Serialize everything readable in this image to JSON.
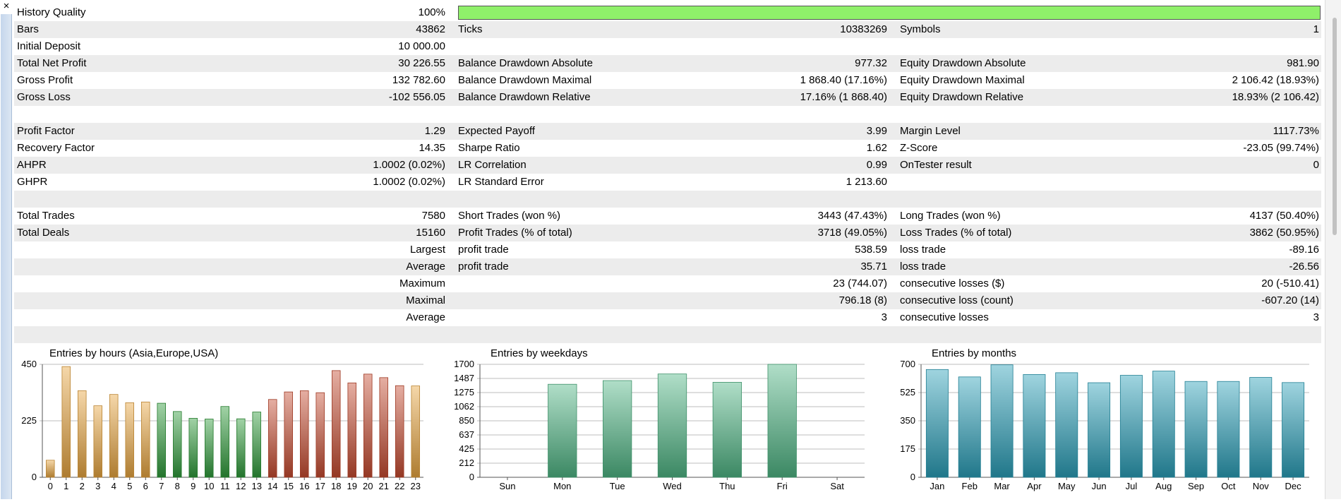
{
  "window": {
    "close_glyph": "×"
  },
  "report": {
    "history_quality": {
      "label": "History Quality",
      "value": "100%",
      "fill_fraction": 1.0
    },
    "rows": [
      {
        "shade": true,
        "c1l": "Bars",
        "c1v": "43862",
        "c2l": "Ticks",
        "c2v": "10383269",
        "c3l": "Symbols",
        "c3v": "1"
      },
      {
        "shade": false,
        "c1l": "Initial Deposit",
        "c1v": "10 000.00",
        "c2l": "",
        "c2v": "",
        "c3l": "",
        "c3v": ""
      },
      {
        "shade": true,
        "c1l": "Total Net Profit",
        "c1v": "30 226.55",
        "c2l": "Balance Drawdown Absolute",
        "c2v": "977.32",
        "c3l": "Equity Drawdown Absolute",
        "c3v": "981.90"
      },
      {
        "shade": false,
        "c1l": "Gross Profit",
        "c1v": "132 782.60",
        "c2l": "Balance Drawdown Maximal",
        "c2v": "1 868.40 (17.16%)",
        "c3l": "Equity Drawdown Maximal",
        "c3v": "2 106.42 (18.93%)"
      },
      {
        "shade": true,
        "c1l": "Gross Loss",
        "c1v": "-102 556.05",
        "c2l": "Balance Drawdown Relative",
        "c2v": "17.16% (1 868.40)",
        "c3l": "Equity Drawdown Relative",
        "c3v": "18.93% (2 106.42)"
      },
      {
        "shade": false,
        "c1l": "",
        "c1v": "",
        "c2l": "",
        "c2v": "",
        "c3l": "",
        "c3v": ""
      },
      {
        "shade": true,
        "c1l": "Profit Factor",
        "c1v": "1.29",
        "c2l": "Expected Payoff",
        "c2v": "3.99",
        "c3l": "Margin Level",
        "c3v": "1117.73%"
      },
      {
        "shade": false,
        "c1l": "Recovery Factor",
        "c1v": "14.35",
        "c2l": "Sharpe Ratio",
        "c2v": "1.62",
        "c3l": "Z-Score",
        "c3v": "-23.05 (99.74%)"
      },
      {
        "shade": true,
        "c1l": "AHPR",
        "c1v": "1.0002 (0.02%)",
        "c2l": "LR Correlation",
        "c2v": "0.99",
        "c3l": "OnTester result",
        "c3v": "0"
      },
      {
        "shade": false,
        "c1l": "GHPR",
        "c1v": "1.0002 (0.02%)",
        "c2l": "LR Standard Error",
        "c2v": "1 213.60",
        "c3l": "",
        "c3v": ""
      },
      {
        "shade": true,
        "c1l": "",
        "c1v": "",
        "c2l": "",
        "c2v": "",
        "c3l": "",
        "c3v": ""
      },
      {
        "shade": false,
        "c1l": "Total Trades",
        "c1v": "7580",
        "c2l": "Short Trades (won %)",
        "c2v": "3443 (47.43%)",
        "c3l": "Long Trades (won %)",
        "c3v": "4137 (50.40%)"
      },
      {
        "shade": true,
        "c1l": "Total Deals",
        "c1v": "15160",
        "c2l": "Profit Trades (% of total)",
        "c2v": "3718 (49.05%)",
        "c3l": "Loss Trades (% of total)",
        "c3v": "3862 (50.95%)"
      },
      {
        "shade": false,
        "c1l": "",
        "c1v": "Largest",
        "c2l": "profit trade",
        "c2v": "538.59",
        "c3l": "loss trade",
        "c3v": "-89.16"
      },
      {
        "shade": true,
        "c1l": "",
        "c1v": "Average",
        "c2l": "profit trade",
        "c2v": "35.71",
        "c3l": "loss trade",
        "c3v": "-26.56"
      },
      {
        "shade": false,
        "c1l": "",
        "c1v": "Maximum",
        "c2l": "",
        "c2v": "23 (744.07)",
        "c3l": "consecutive losses ($)",
        "c3v": "20 (-510.41)"
      },
      {
        "shade": true,
        "c1l": "",
        "c1v": "Maximal",
        "c2l": "",
        "c2v": "796.18 (8)",
        "c3l": "consecutive loss (count)",
        "c3v": "-607.20 (14)"
      },
      {
        "shade": false,
        "c1l": "",
        "c1v": "Average",
        "c2l": "",
        "c2v": "3",
        "c3l": "consecutive losses",
        "c3v": "3"
      },
      {
        "shade": true,
        "c1l": "",
        "c1v": "",
        "c2l": "",
        "c2v": "",
        "c3l": "",
        "c3v": ""
      }
    ]
  },
  "chart_data": [
    {
      "type": "bar",
      "title": "Entries by hours (Asia,Europe,USA)",
      "ylim": [
        0,
        450
      ],
      "yticks": [
        "0",
        "225",
        "450"
      ],
      "grid": true,
      "categories": [
        "0",
        "1",
        "2",
        "3",
        "4",
        "5",
        "6",
        "7",
        "8",
        "9",
        "10",
        "11",
        "12",
        "13",
        "14",
        "15",
        "16",
        "17",
        "18",
        "19",
        "20",
        "21",
        "22",
        "23"
      ],
      "values": [
        68,
        441,
        345,
        285,
        330,
        297,
        300,
        295,
        262,
        235,
        232,
        282,
        233,
        260,
        310,
        340,
        345,
        337,
        425,
        376,
        411,
        397,
        365,
        364
      ],
      "colors": {
        "orange": "#e8a540",
        "green": "#2f9a3a",
        "red": "#c54a30"
      },
      "bar_colors": [
        "orange",
        "orange",
        "orange",
        "orange",
        "orange",
        "orange",
        "orange",
        "green",
        "green",
        "green",
        "green",
        "green",
        "green",
        "green",
        "red",
        "red",
        "red",
        "red",
        "red",
        "red",
        "red",
        "red",
        "red",
        "orange"
      ]
    },
    {
      "type": "bar",
      "title": "Entries by weekdays",
      "ylim": [
        0,
        1700
      ],
      "yticks": [
        "0",
        "212",
        "425",
        "637",
        "850",
        "1062",
        "1275",
        "1487",
        "1700"
      ],
      "grid": true,
      "categories": [
        "Sun",
        "Mon",
        "Tue",
        "Wed",
        "Thu",
        "Fri",
        "Sat"
      ],
      "values": [
        0,
        1400,
        1455,
        1555,
        1430,
        1700,
        0
      ],
      "colors": {
        "bar": "#4fb584"
      }
    },
    {
      "type": "bar",
      "title": "Entries by months",
      "ylim": [
        0,
        700
      ],
      "yticks": [
        "0",
        "175",
        "350",
        "525",
        "700"
      ],
      "grid": true,
      "categories": [
        "Jan",
        "Feb",
        "Mar",
        "Apr",
        "May",
        "Jun",
        "Jul",
        "Aug",
        "Sep",
        "Oct",
        "Nov",
        "Dec"
      ],
      "values": [
        668,
        622,
        697,
        637,
        648,
        586,
        632,
        658,
        594,
        594,
        619,
        587
      ],
      "colors": {
        "bar": "#2a9fb8"
      }
    }
  ]
}
